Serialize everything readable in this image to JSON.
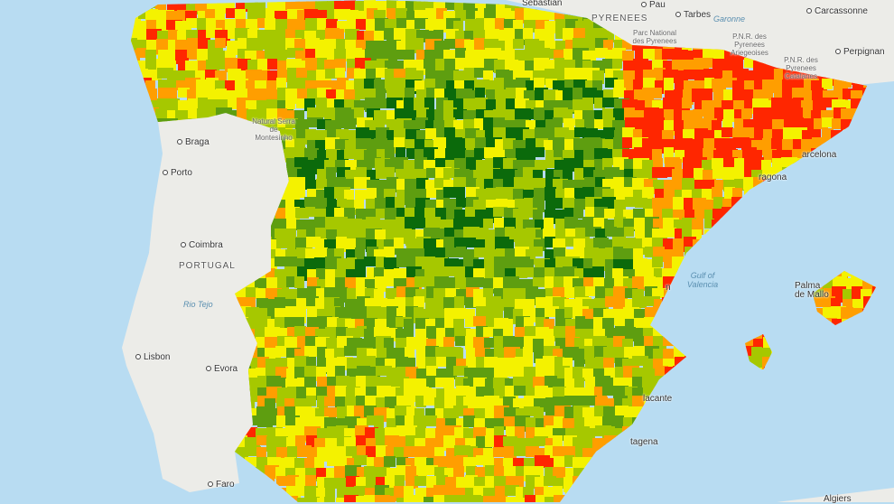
{
  "map": {
    "colors": {
      "sea": "#b8dcf2",
      "land": "#ecece8",
      "dark_green": "#0b6a0b",
      "green": "#5e9e10",
      "yellow_green": "#a6c800",
      "yellow": "#f4f200",
      "orange": "#ff9e00",
      "red": "#ff2600"
    },
    "labels": {
      "san_sebastian": "Sebastián",
      "pau": "Pau",
      "tarbes": "Tarbes",
      "garonne": "Garonne",
      "pyrenees": "PYRENEES",
      "carcassonne": "Carcassonne",
      "perpignan": "Perpignan",
      "pn_pyrenees": "Parc National des Pyrenees",
      "pnr_ariegeoises": "P.N.R. des Pyrenees Ariegeoises",
      "pnr_catalanes": "P.N.R. des Pyrenees Catalanes",
      "montesinho": "Natural Serra de Montesinho",
      "braga": "Braga",
      "porto": "Porto",
      "coimbra": "Coimbra",
      "portugal": "PORTUGAL",
      "rio_tejo": "Rio Tejo",
      "lisbon": "Lisbon",
      "evora": "Evora",
      "faro": "Faro",
      "barcelona": "arcelona",
      "tarragona": "ragona",
      "gulf_valencia": "Gulf of Valencia",
      "valencia": "n",
      "palma": "Palma de Mallo",
      "alicante": "lacante",
      "cartagena": "tagena",
      "algiers": "Algiers"
    }
  }
}
